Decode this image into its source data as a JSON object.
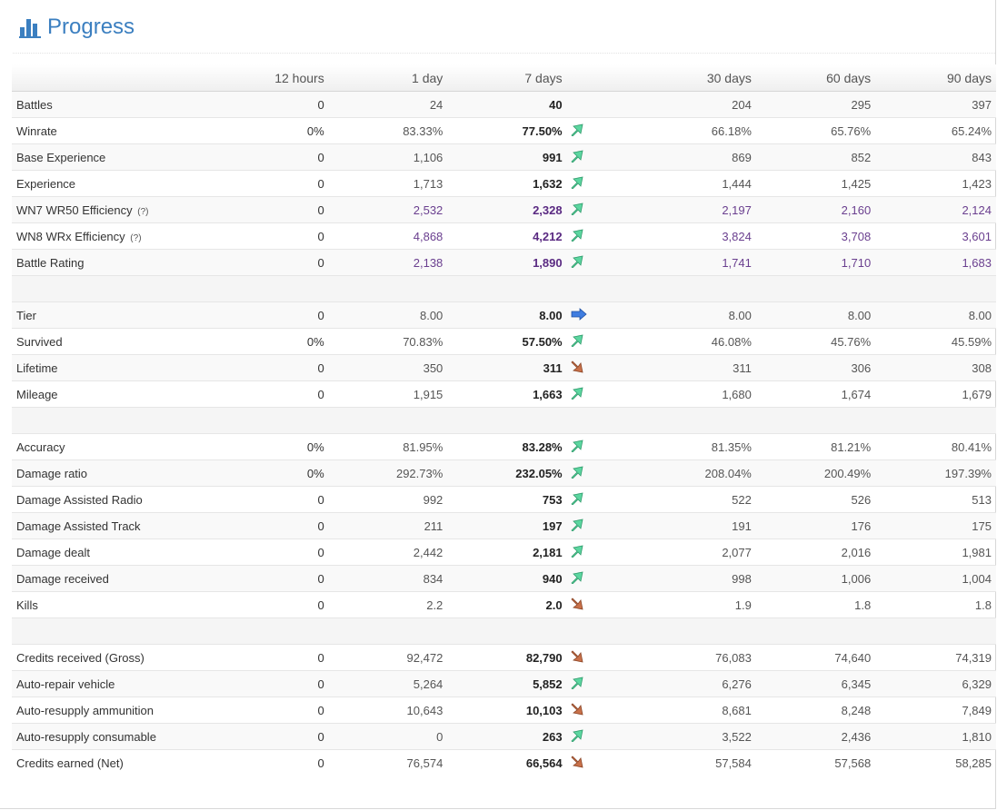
{
  "header": {
    "title": "Progress",
    "icon": "bar-chart-icon"
  },
  "columns": [
    "12 hours",
    "1 day",
    "7 days",
    "30 days",
    "60 days",
    "90 days"
  ],
  "groups": [
    [
      {
        "label": "Battles",
        "help": "",
        "values": [
          "0",
          "24",
          "40",
          "204",
          "295",
          "397"
        ],
        "trend": "",
        "rated": false
      },
      {
        "label": "Winrate",
        "help": "",
        "values": [
          "0%",
          "83.33%",
          "77.50%",
          "66.18%",
          "65.76%",
          "65.24%"
        ],
        "trend": "up",
        "rated": false
      },
      {
        "label": "Base Experience",
        "help": "",
        "values": [
          "0",
          "1,106",
          "991",
          "869",
          "852",
          "843"
        ],
        "trend": "up",
        "rated": false
      },
      {
        "label": "Experience",
        "help": "",
        "values": [
          "0",
          "1,713",
          "1,632",
          "1,444",
          "1,425",
          "1,423"
        ],
        "trend": "up",
        "rated": false
      },
      {
        "label": "WN7 WR50 Efficiency",
        "help": "(?)",
        "values": [
          "0",
          "2,532",
          "2,328",
          "2,197",
          "2,160",
          "2,124"
        ],
        "trend": "up",
        "rated": true
      },
      {
        "label": "WN8 WRx Efficiency",
        "help": "(?)",
        "values": [
          "0",
          "4,868",
          "4,212",
          "3,824",
          "3,708",
          "3,601"
        ],
        "trend": "up",
        "rated": true
      },
      {
        "label": "Battle Rating",
        "help": "",
        "values": [
          "0",
          "2,138",
          "1,890",
          "1,741",
          "1,710",
          "1,683"
        ],
        "trend": "up",
        "rated": true
      }
    ],
    [
      {
        "label": "Tier",
        "help": "",
        "values": [
          "0",
          "8.00",
          "8.00",
          "8.00",
          "8.00",
          "8.00"
        ],
        "trend": "same",
        "rated": false
      },
      {
        "label": "Survived",
        "help": "",
        "values": [
          "0%",
          "70.83%",
          "57.50%",
          "46.08%",
          "45.76%",
          "45.59%"
        ],
        "trend": "up",
        "rated": false
      },
      {
        "label": "Lifetime",
        "help": "",
        "values": [
          "0",
          "350",
          "311",
          "311",
          "306",
          "308"
        ],
        "trend": "down",
        "rated": false
      },
      {
        "label": "Mileage",
        "help": "",
        "values": [
          "0",
          "1,915",
          "1,663",
          "1,680",
          "1,674",
          "1,679"
        ],
        "trend": "up",
        "rated": false
      }
    ],
    [
      {
        "label": "Accuracy",
        "help": "",
        "values": [
          "0%",
          "81.95%",
          "83.28%",
          "81.35%",
          "81.21%",
          "80.41%"
        ],
        "trend": "up",
        "rated": false
      },
      {
        "label": "Damage ratio",
        "help": "",
        "values": [
          "0%",
          "292.73%",
          "232.05%",
          "208.04%",
          "200.49%",
          "197.39%"
        ],
        "trend": "up",
        "rated": false
      },
      {
        "label": "Damage Assisted Radio",
        "help": "",
        "values": [
          "0",
          "992",
          "753",
          "522",
          "526",
          "513"
        ],
        "trend": "up",
        "rated": false
      },
      {
        "label": "Damage Assisted Track",
        "help": "",
        "values": [
          "0",
          "211",
          "197",
          "191",
          "176",
          "175"
        ],
        "trend": "up",
        "rated": false
      },
      {
        "label": "Damage dealt",
        "help": "",
        "values": [
          "0",
          "2,442",
          "2,181",
          "2,077",
          "2,016",
          "1,981"
        ],
        "trend": "up",
        "rated": false
      },
      {
        "label": "Damage received",
        "help": "",
        "values": [
          "0",
          "834",
          "940",
          "998",
          "1,006",
          "1,004"
        ],
        "trend": "up",
        "rated": false
      },
      {
        "label": "Kills",
        "help": "",
        "values": [
          "0",
          "2.2",
          "2.0",
          "1.9",
          "1.8",
          "1.8"
        ],
        "trend": "down",
        "rated": false
      }
    ],
    [
      {
        "label": "Credits received (Gross)",
        "help": "",
        "values": [
          "0",
          "92,472",
          "82,790",
          "76,083",
          "74,640",
          "74,319"
        ],
        "trend": "down",
        "rated": false
      },
      {
        "label": "Auto-repair vehicle",
        "help": "",
        "values": [
          "0",
          "5,264",
          "5,852",
          "6,276",
          "6,345",
          "6,329"
        ],
        "trend": "up",
        "rated": false
      },
      {
        "label": "Auto-resupply ammunition",
        "help": "",
        "values": [
          "0",
          "10,643",
          "10,103",
          "8,681",
          "8,248",
          "7,849"
        ],
        "trend": "down",
        "rated": false
      },
      {
        "label": "Auto-resupply consumable",
        "help": "",
        "values": [
          "0",
          "0",
          "263",
          "3,522",
          "2,436",
          "1,810"
        ],
        "trend": "up",
        "rated": false
      },
      {
        "label": "Credits earned (Net)",
        "help": "",
        "values": [
          "0",
          "76,574",
          "66,564",
          "57,584",
          "57,568",
          "58,285"
        ],
        "trend": "down",
        "rated": false
      }
    ]
  ],
  "colors": {
    "title": "#3b7fc0",
    "trend_up": "#5cd6a0",
    "trend_down": "#c9714a",
    "trend_same": "#3f7de0",
    "rated": "#5a2a82"
  }
}
